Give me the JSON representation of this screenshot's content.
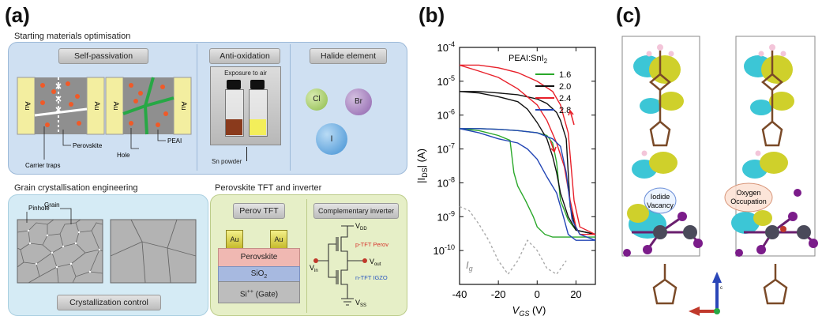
{
  "panel_a": {
    "label": "(a)",
    "starting": {
      "title": "Starting materials optimisation",
      "self_passivation": "Self-passivation",
      "anti_oxidation": "Anti-oxidation",
      "halide_element": "Halide element",
      "au": "Au",
      "carrier_traps": "Carrier traps",
      "perovskite": "Perovskite",
      "hole": "Hole",
      "peai": "PEAI",
      "exposure": "Exposure to air",
      "sn_powder": "Sn powder",
      "halides": [
        "Cl",
        "Br",
        "I"
      ]
    },
    "grain": {
      "title": "Grain crystallisation engineering",
      "pinhole": "Pinhole",
      "grain": "Grain",
      "control": "Crystallization control"
    },
    "tft": {
      "title": "Perovskite TFT and inverter",
      "perov_tft": "Perov TFT",
      "inverter": "Complementary inverter",
      "au": "Au",
      "perovskite": "Perovskite",
      "sio2": "SiO",
      "sio2_sub": "2",
      "si": "Si",
      "si_sup": "++",
      "si_rest": " (Gate)",
      "vdd": "V",
      "vdd_sub": "DD",
      "vin": "V",
      "vin_sub": "in",
      "vout": "V",
      "vout_sub": "out",
      "vss": "V",
      "vss_sub": "SS",
      "ptft": "p-TFT Perov",
      "ntft": "n-TFT IGZO"
    }
  },
  "panel_b": {
    "label": "(b)",
    "legend_title": "PEAI:SnI",
    "legend_title_sub": "2",
    "ylabel": "|I",
    "ylabel_sub": "DS",
    "ylabel_rest": "| (A)",
    "xlabel": "V",
    "xlabel_sub": "GS",
    "xlabel_rest": " (V)",
    "ig_label": "I",
    "ig_sub": "g",
    "colors": {
      "1.6": "#2aa82a",
      "2.0": "#111111",
      "2.4": "#e8202a",
      "2.8": "#2346b5",
      "ig": "#aaaaaa"
    }
  },
  "panel_c": {
    "label": "(c)",
    "iodide": "Iodide",
    "vacancy": "Vacancy",
    "oxygen": "Oxygen",
    "occupation": "Occupation",
    "axis_c": "c"
  },
  "chart_data": {
    "type": "line",
    "title": "",
    "xlabel": "VGS (V)",
    "ylabel": "|IDS| (A)",
    "y_scale": "log",
    "xlim": [
      -40,
      30
    ],
    "ylim": [
      1e-11,
      0.0001
    ],
    "x_ticks": [
      "-40",
      "-20",
      "0",
      "20"
    ],
    "y_ticks": [
      "10-10",
      "10-9",
      "10-8",
      "10-7",
      "10-6",
      "10-5",
      "10-4"
    ],
    "legend_title": "PEAI:SnI2",
    "legend_position": "top-right",
    "series": [
      {
        "name": "1.6",
        "x": [
          -40,
          -30,
          -20,
          -14,
          -12,
          -10,
          -6,
          -2,
          0,
          4,
          8,
          10,
          12,
          14,
          18,
          22,
          30
        ],
        "y": [
          4e-07,
          3.5e-07,
          2.5e-07,
          1.8e-07,
          2e-08,
          8e-09,
          3e-09,
          1e-09,
          5e-10,
          3e-10,
          2.5e-10,
          2.5e-10,
          2.5e-10,
          2.5e-10,
          2.5e-10,
          2.5e-10,
          2.5e-10
        ]
      },
      {
        "name": "1.6 (reverse)",
        "x": [
          30,
          20,
          16,
          12,
          10,
          8,
          5,
          0,
          -10,
          -20,
          -30,
          -40
        ],
        "y": [
          3e-10,
          4e-10,
          8e-10,
          3e-09,
          4e-08,
          1.5e-07,
          2.5e-07,
          3e-07,
          3.5e-07,
          3.8e-07,
          4e-07,
          4e-07
        ]
      },
      {
        "name": "2.0",
        "x": [
          -40,
          -30,
          -20,
          -10,
          -5,
          0,
          5,
          8,
          10,
          12,
          16,
          20,
          30
        ],
        "y": [
          5e-06,
          4.5e-06,
          3.5e-06,
          2.5e-06,
          1.5e-06,
          6e-07,
          2e-07,
          6e-08,
          2e-08,
          5e-09,
          1e-09,
          4e-10,
          3e-10
        ]
      },
      {
        "name": "2.0 (reverse)",
        "x": [
          30,
          20,
          17,
          15,
          12,
          10,
          5,
          0,
          -10,
          -20,
          -30,
          -40
        ],
        "y": [
          3e-10,
          4e-10,
          2e-09,
          2e-07,
          7e-07,
          1.2e-06,
          2.2e-06,
          3e-06,
          4e-06,
          4.5e-06,
          5e-06,
          5e-06
        ]
      },
      {
        "name": "2.4",
        "x": [
          -40,
          -30,
          -20,
          -10,
          0,
          5,
          10,
          14,
          17,
          20,
          22,
          25,
          30
        ],
        "y": [
          3e-05,
          2e-05,
          1.3e-05,
          6e-06,
          2e-06,
          7e-07,
          1.5e-07,
          3e-08,
          3e-09,
          5e-10,
          3e-10,
          3e-10,
          3e-10
        ]
      },
      {
        "name": "2.4 (reverse)",
        "x": [
          30,
          22,
          19,
          16,
          12,
          8,
          0,
          -10,
          -20,
          -30,
          -40
        ],
        "y": [
          3e-10,
          5e-10,
          3e-09,
          3e-07,
          2e-06,
          5e-06,
          1e-05,
          1.8e-05,
          2.5e-05,
          3e-05,
          3e-05
        ]
      },
      {
        "name": "2.8",
        "x": [
          -40,
          -30,
          -20,
          -10,
          -5,
          0,
          5,
          10,
          14,
          16,
          20,
          30
        ],
        "y": [
          4e-07,
          3e-07,
          2e-07,
          1.5e-07,
          1e-07,
          5e-08,
          1.5e-08,
          5e-09,
          8e-10,
          3e-10,
          2e-10,
          2e-10
        ]
      },
      {
        "name": "2.8 (reverse)",
        "x": [
          30,
          22,
          18,
          15,
          12,
          8,
          0,
          -10,
          -20,
          -30,
          -40
        ],
        "y": [
          2e-10,
          3e-10,
          8e-10,
          2e-08,
          1.2e-07,
          2e-07,
          3e-07,
          3.5e-07,
          3.8e-07,
          4e-07,
          4e-07
        ]
      },
      {
        "name": "Ig",
        "x": [
          -40,
          -35,
          -30,
          -25,
          -20,
          -15,
          -10,
          -5,
          0,
          5,
          10,
          15
        ],
        "y": [
          2e-09,
          1.5e-09,
          6e-10,
          2e-10,
          5e-11,
          2e-11,
          5e-11,
          2e-10,
          1e-10,
          3e-11,
          2e-11,
          5e-11
        ]
      }
    ]
  }
}
